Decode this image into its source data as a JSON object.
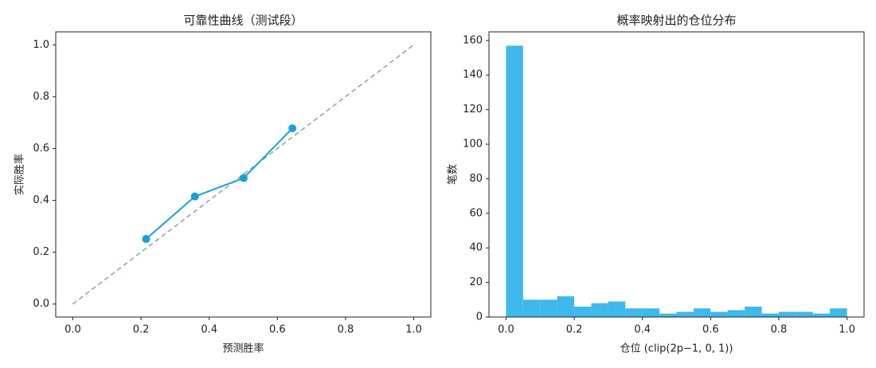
{
  "chart_data": [
    {
      "type": "line",
      "title": "可靠性曲线（测试段）",
      "xlabel": "预测胜率",
      "ylabel": "实际胜率",
      "xlim": [
        -0.05,
        1.05
      ],
      "ylim": [
        -0.05,
        1.05
      ],
      "xticks": [
        {
          "value": 0,
          "label": "0.0"
        },
        0.2,
        0.4,
        0.6,
        0.8,
        {
          "value": 1,
          "label": "1.0"
        }
      ],
      "yticks": [
        {
          "value": 0,
          "label": "0.0"
        },
        0.2,
        0.4,
        0.6,
        0.8,
        {
          "value": 1,
          "label": "1.0"
        }
      ],
      "series": [
        {
          "x": [
            0,
            1
          ],
          "values": [
            0,
            1
          ],
          "color": "#94a3b8",
          "dashed": true
        },
        {
          "x": [
            0.215,
            0.358,
            0.501,
            0.644
          ],
          "values": [
            0.251,
            0.415,
            0.486,
            0.678
          ],
          "color": "#1a9fd9",
          "markers": true
        }
      ]
    },
    {
      "type": "histogram",
      "title": "概率映射出的仓位分布",
      "xlabel": "仓位 (clip(2p−1, 0, 1))",
      "ylabel": "笔数",
      "xlim": [
        -0.05,
        1.05
      ],
      "ylim": [
        0,
        165
      ],
      "xticks": [
        {
          "value": 0,
          "label": "0.0"
        },
        0.2,
        0.4,
        0.6,
        0.8,
        {
          "value": 1,
          "label": "1.0"
        }
      ],
      "yticks": [
        0,
        20,
        40,
        60,
        80,
        100,
        120,
        140,
        160
      ],
      "color": "#3fb8ec",
      "bins": [
        0,
        0.05,
        0.1,
        0.15,
        0.2,
        0.25,
        0.3,
        0.35,
        0.4,
        0.45,
        0.5,
        0.55,
        0.6,
        0.65,
        0.7,
        0.75,
        0.8,
        0.85,
        0.9,
        0.95,
        1
      ],
      "values": [
        157,
        10,
        10,
        12,
        6,
        8,
        9,
        5,
        5,
        2,
        3,
        5,
        3,
        4,
        6,
        2,
        3,
        3,
        2,
        5
      ]
    }
  ]
}
